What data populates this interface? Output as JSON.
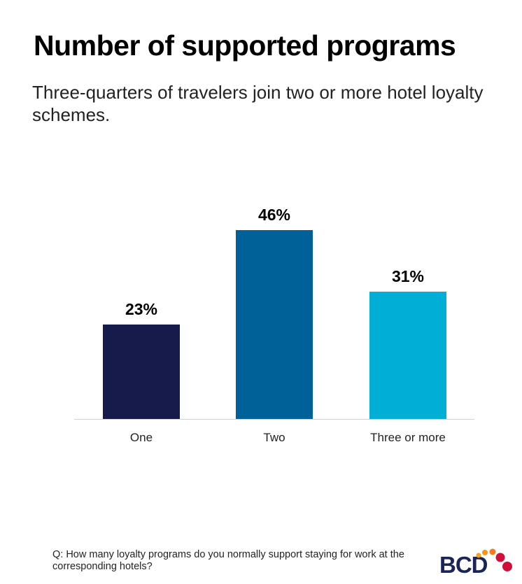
{
  "title": "Number of supported programs",
  "subtitle": "Three-quarters of travelers join two or more hotel loyalty schemes.",
  "footnote": "Q: How many loyalty programs do you normally support staying for work at the corresponding hotels?",
  "logo": {
    "text": "BCD",
    "colors": {
      "letters": "#1a2456",
      "dots_orange": "#f7941d",
      "dots_red": "#d0103a"
    }
  },
  "chart_data": {
    "type": "bar",
    "categories": [
      "One",
      "Two",
      "Three or more"
    ],
    "values": [
      23,
      46,
      31
    ],
    "data_labels": [
      "23%",
      "46%",
      "31%"
    ],
    "unit": "%",
    "colors": [
      "#161b4b",
      "#006199",
      "#00aed6"
    ],
    "ylim": [
      0,
      50
    ],
    "grid": false,
    "title": "Number of supported programs",
    "xlabel": "",
    "ylabel": ""
  }
}
